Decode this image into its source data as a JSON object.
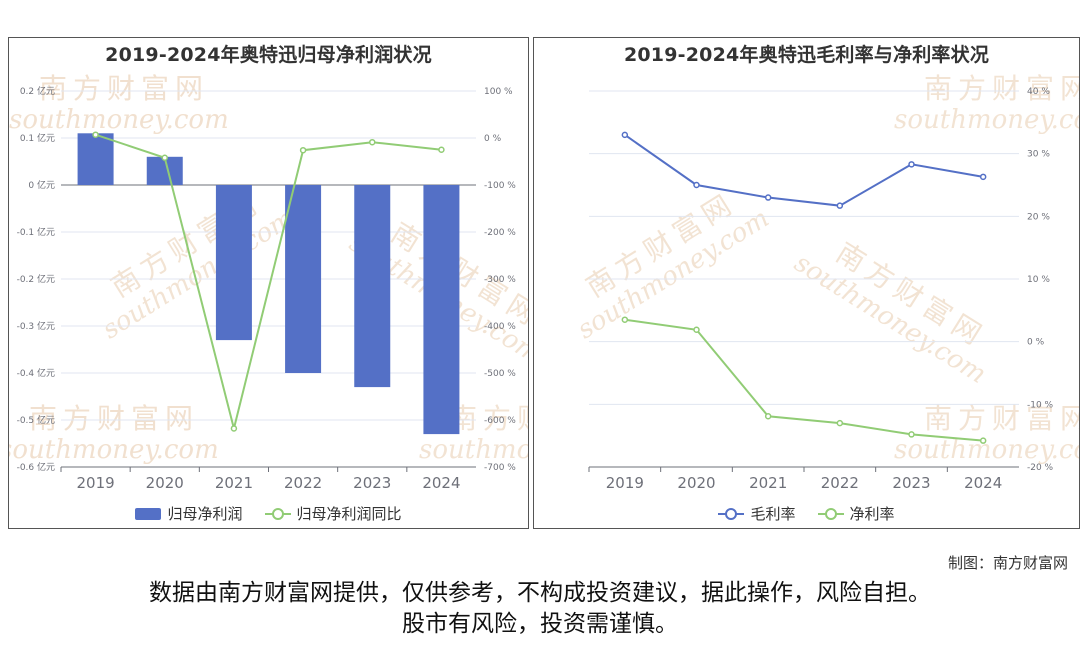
{
  "credit": "制图：南方财富网",
  "disclaimer": {
    "line1": "数据由南方财富网提供，仅供参考，不构成投资建议，据此操作，风险自担。",
    "line2": "股市有风险，投资需谨慎。"
  },
  "watermark": {
    "cn": "南方财富网",
    "en": "southmoney.com"
  },
  "colors": {
    "blue": "#5470c6",
    "green": "#91cc75",
    "axis": "#6e7079",
    "grid": "#e0e6f1"
  },
  "chart_data": [
    {
      "type": "bar+line",
      "title": "2019-2024年奥特迅归母净利润状况",
      "categories": [
        "2019",
        "2020",
        "2021",
        "2022",
        "2023",
        "2024"
      ],
      "series": [
        {
          "name": "归母净利润",
          "type": "bar",
          "axis": "left",
          "values": [
            0.11,
            0.06,
            -0.33,
            -0.4,
            -0.43,
            -0.53
          ]
        },
        {
          "name": "归母净利润同比",
          "type": "line",
          "axis": "right",
          "values": [
            7,
            -42,
            -618,
            -26,
            -9,
            -25
          ]
        }
      ],
      "left_axis": {
        "ticks": [
          "0.2 亿元",
          "0.1 亿元",
          "0 亿元",
          "-0.1 亿元",
          "-0.2 亿元",
          "-0.3 亿元",
          "-0.4 亿元",
          "-0.5 亿元",
          "-0.6 亿元"
        ],
        "range": [
          -0.6,
          0.2
        ]
      },
      "right_axis": {
        "ticks": [
          "100 %",
          "0 %",
          "-100 %",
          "-200 %",
          "-300 %",
          "-400 %",
          "-500 %",
          "-600 %",
          "-700 %"
        ],
        "range": [
          -700,
          100
        ]
      },
      "legend": "bottom"
    },
    {
      "type": "line",
      "title": "2019-2024年奥特迅毛利率与净利率状况",
      "categories": [
        "2019",
        "2020",
        "2021",
        "2022",
        "2023",
        "2024"
      ],
      "series": [
        {
          "name": "毛利率",
          "values": [
            33.0,
            25.0,
            23.0,
            21.7,
            28.3,
            26.3
          ]
        },
        {
          "name": "净利率",
          "values": [
            3.5,
            1.9,
            -11.9,
            -13.0,
            -14.8,
            -15.8
          ]
        }
      ],
      "right_axis": {
        "ticks": [
          "40 %",
          "30 %",
          "20 %",
          "10 %",
          "0 %",
          "-10 %",
          "-20 %"
        ],
        "range": [
          -20,
          40
        ]
      },
      "legend": "bottom"
    }
  ]
}
